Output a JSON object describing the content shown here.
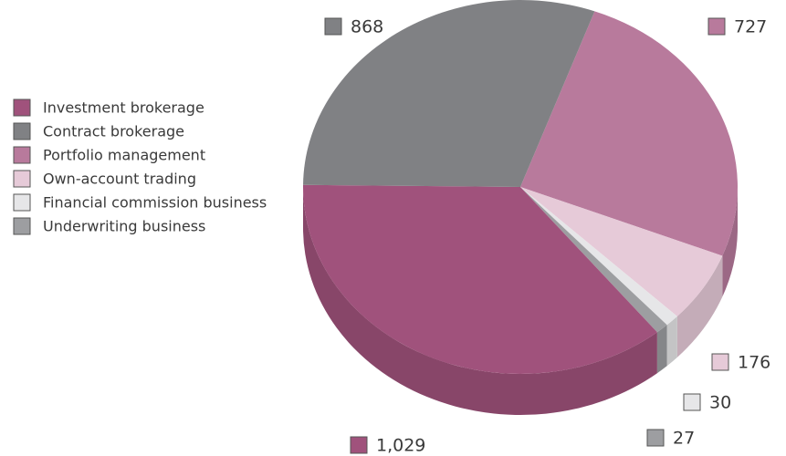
{
  "chart_data": {
    "type": "pie3d",
    "categories": [
      "Investment brokerage",
      "Contract brokerage",
      "Portfolio management",
      "Own-account trading",
      "Financial commission business",
      "Underwriting business"
    ],
    "values": [
      1029,
      868,
      727,
      176,
      30,
      27
    ],
    "value_labels": [
      "1,029",
      "868",
      "727",
      "176",
      "30",
      "27"
    ],
    "colors": [
      "#a0527c",
      "#808184",
      "#b87a9c",
      "#e6cad8",
      "#e6e6e8",
      "#9d9ea1"
    ],
    "legend": "left"
  }
}
